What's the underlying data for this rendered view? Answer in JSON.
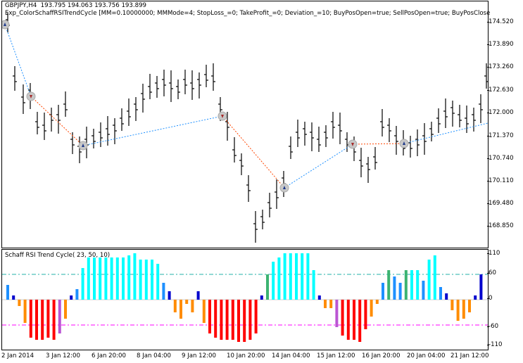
{
  "chart_header": {
    "symbol_timeframe": "GBPJPY,H4",
    "ohlc": "193.795 194.063 193.756 193.899",
    "expert_label": "Exp_ColorSchaffRSITrendCycle [MM=0.10000000; MMMode=4; StopLoss_=0; TakeProfit_=0; Deviation_=10; BuyPosOpen=true; SellPosOpen=true; BuyPosClose"
  },
  "indicator": {
    "title": "Schaff RSI Trend Cycle( 23, 50, 10)",
    "levels": [
      "110",
      "60",
      "0",
      "-60",
      "-110"
    ]
  },
  "price_axis": {
    "ticks": [
      "174.520",
      "173.890",
      "173.260",
      "172.630",
      "172.000",
      "171.370",
      "170.740",
      "170.110",
      "169.480",
      "168.850"
    ]
  },
  "time_axis": {
    "labels": [
      "2 Jan 2014",
      "3 Jan 12:00",
      "6 Jan 20:00",
      "8 Jan 04:00",
      "9 Jan 12:00",
      "10 Jan 20:00",
      "14 Jan 04:00",
      "15 Jan 12:00",
      "16 Jan 20:00",
      "20 Jan 04:00",
      "21 Jan 12:00"
    ]
  },
  "colors": {
    "bull": "#00FFFF",
    "bull_weak": "#3CB371",
    "bull_mid": "#1E90FF",
    "bull_strong": "#0000CD",
    "bear": "#FF0000",
    "bear_weak": "#FF8C00",
    "bear_mid": "#BA55D3",
    "level_up": "#20B2AA",
    "level_dn": "#FF00FF",
    "buy_line": "#1E90FF",
    "sell_line": "#FF4500"
  },
  "chart_data": {
    "type": "bar",
    "series": [
      {
        "name": "Schaff RSI Trend Cycle( 23, 50, 10)",
        "values": [
          35,
          10,
          -15,
          -55,
          -90,
          -95,
          -95,
          -90,
          -95,
          -80,
          -45,
          10,
          25,
          75,
          100,
          100,
          100,
          100,
          100,
          100,
          100,
          105,
          110,
          95,
          95,
          95,
          85,
          40,
          20,
          -30,
          -45,
          -10,
          -30,
          20,
          -55,
          -80,
          -90,
          -95,
          -95,
          -95,
          -100,
          -100,
          -95,
          -80,
          10,
          60,
          90,
          100,
          110,
          110,
          110,
          110,
          110,
          70,
          10,
          -20,
          -20,
          -65,
          -85,
          -95,
          -95,
          -100,
          -70,
          -40,
          -10,
          40,
          70,
          55,
          40,
          70,
          70,
          70,
          45,
          95,
          105,
          30,
          15,
          -25,
          -50,
          -45,
          -30,
          10,
          60
        ]
      }
    ]
  }
}
